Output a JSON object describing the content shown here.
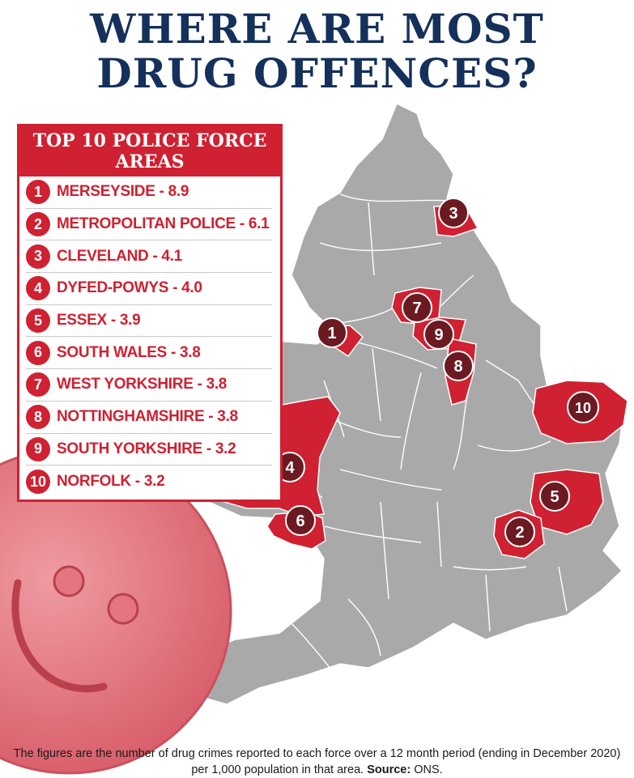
{
  "title": {
    "line1": "WHERE ARE MOST",
    "line2": "DRUG OFFENCES?"
  },
  "panel": {
    "heading_line1": "TOP 10 POLICE FORCE",
    "heading_line2": "AREAS",
    "items": [
      {
        "rank": "1",
        "text": "MERSEYSIDE - 8.9",
        "area": "Merseyside",
        "value": 8.9
      },
      {
        "rank": "2",
        "text": "METROPOLITAN POLICE - 6.1",
        "area": "Metropolitan Police",
        "value": 6.1
      },
      {
        "rank": "3",
        "text": "CLEVELAND - 4.1",
        "area": "Cleveland",
        "value": 4.1
      },
      {
        "rank": "4",
        "text": "DYFED-POWYS - 4.0",
        "area": "Dyfed-Powys",
        "value": 4.0
      },
      {
        "rank": "5",
        "text": "ESSEX - 3.9",
        "area": "Essex",
        "value": 3.9
      },
      {
        "rank": "6",
        "text": "SOUTH WALES - 3.8",
        "area": "South Wales",
        "value": 3.8
      },
      {
        "rank": "7",
        "text": "WEST YORKSHIRE - 3.8",
        "area": "West Yorkshire",
        "value": 3.8
      },
      {
        "rank": "8",
        "text": "NOTTINGHAMSHIRE - 3.8",
        "area": "Nottinghamshire",
        "value": 3.8
      },
      {
        "rank": "9",
        "text": "SOUTH YORKSHIRE - 3.2",
        "area": "South Yorkshire",
        "value": 3.2
      },
      {
        "rank": "10",
        "text": "NORFOLK - 3.2",
        "area": "Norfolk",
        "value": 3.2
      }
    ]
  },
  "map": {
    "markers": [
      "1",
      "2",
      "3",
      "4",
      "5",
      "6",
      "7",
      "8",
      "9",
      "10"
    ]
  },
  "caption": {
    "text": "The figures are the number of drug crimes reported to each force over a 12 month period (ending in December 2020) per 1,000 population in that area.",
    "source_label": "Source:",
    "source": "ONS."
  },
  "colors": {
    "navy": "#14305b",
    "highlight": "#cf2131",
    "marker": "#6b1a22",
    "land": "#a9a9a9",
    "pill": "#eb7f88"
  }
}
